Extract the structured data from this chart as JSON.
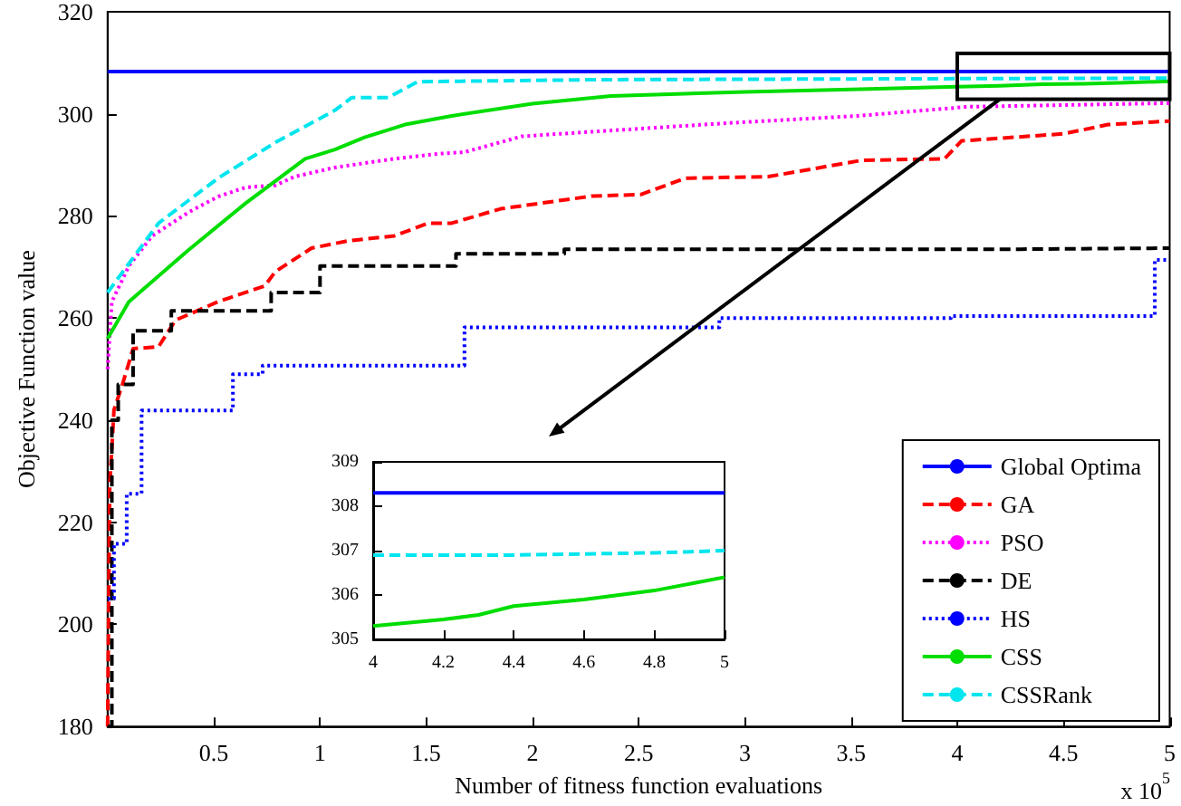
{
  "chart_data": [
    {
      "type": "line",
      "xlabel": "Number of fitness function evaluations",
      "ylabel": "Objective Function value",
      "annotations": [
        "x 10$^{5}$"
      ],
      "xlim": [
        0,
        5
      ],
      "xticks": [
        0.5,
        1,
        1.5,
        2,
        2.5,
        3,
        3.5,
        4,
        4.5,
        5
      ],
      "ylim": [
        180,
        320
      ],
      "yticks": [
        180,
        200,
        220,
        240,
        260,
        280,
        300,
        320
      ],
      "grid": false,
      "legend": "bottom right",
      "marker": "none",
      "series": [
        {
          "name": "Global Optima",
          "color": "#0000ff",
          "line_style": "solid",
          "x": [
            0,
            5
          ],
          "values": [
            308.3,
            308.3
          ]
        },
        {
          "name": "GA",
          "color": "#ff0000",
          "line_style": "dashed",
          "x": [
            0,
            0.01,
            0.03,
            0.07,
            0.12,
            0.24,
            0.32,
            0.52,
            0.74,
            0.79,
            0.96,
            1.13,
            1.35,
            1.51,
            1.62,
            1.85,
            2.28,
            2.51,
            2.72,
            3.11,
            3.55,
            3.94,
            4.02,
            4.5,
            4.71,
            5
          ],
          "values": [
            180,
            227,
            242,
            247,
            254,
            254.4,
            259.6,
            263.2,
            266.3,
            269.1,
            273.7,
            275.1,
            276.1,
            278.6,
            278.6,
            281.4,
            283.9,
            284.2,
            287.4,
            287.7,
            290.9,
            291.2,
            294.7,
            296.1,
            297.9,
            298.6
          ]
        },
        {
          "name": "PSO",
          "color": "#ff00ff",
          "line_style": "dotted",
          "x": [
            0,
            0.02,
            0.1,
            0.21,
            0.38,
            0.52,
            0.65,
            0.79,
            0.88,
            1.07,
            1.35,
            1.56,
            1.68,
            1.95,
            2.28,
            2.92,
            3.53,
            4.05,
            5
          ],
          "values": [
            250,
            263.2,
            270.2,
            276.1,
            280.7,
            283.8,
            285.6,
            286,
            287.7,
            289.5,
            291.2,
            292.2,
            292.5,
            295.6,
            296.5,
            298.2,
            299.6,
            301.4,
            302.1
          ]
        },
        {
          "name": "DE",
          "color": "#000000",
          "line_style": "dashed",
          "type": "step",
          "x": [
            0,
            0.02,
            0.05,
            0.12,
            0.3,
            0.77,
            1.0,
            1.64,
            2.15,
            4.3,
            5
          ],
          "values": [
            180,
            240,
            247,
            257.5,
            261.4,
            265,
            270.2,
            272.6,
            273.5,
            273.7,
            273.7
          ]
        },
        {
          "name": "HS",
          "color": "#0000ff",
          "line_style": "dotted",
          "type": "step",
          "x": [
            0,
            0.03,
            0.09,
            0.16,
            0.59,
            0.73,
            1.68,
            2.88,
            3.97,
            4.93,
            5
          ],
          "values": [
            205,
            215.8,
            225.6,
            241.9,
            249,
            250.7,
            258.2,
            260,
            260.4,
            271.4,
            271.4
          ]
        },
        {
          "name": "CSS",
          "color": "#00dd00",
          "line_style": "solid",
          "x": [
            0,
            0.1,
            0.38,
            0.65,
            0.93,
            1.07,
            1.21,
            1.4,
            1.62,
            2.0,
            2.37,
            3.0,
            3.5,
            4.0,
            4.2,
            4.4,
            4.6,
            4.8,
            5
          ],
          "values": [
            256,
            263.2,
            273.3,
            282.5,
            291.2,
            293,
            295.4,
            297.9,
            299.6,
            302,
            303.5,
            304.3,
            304.8,
            305.3,
            305.5,
            305.8,
            305.9,
            306.1,
            306.4
          ]
        },
        {
          "name": "CSSRank",
          "color": "#00e5ee",
          "line_style": "dashed",
          "x": [
            0,
            0.24,
            0.52,
            0.79,
            1.07,
            1.15,
            1.32,
            1.46,
            2.3,
            4.0,
            5
          ],
          "values": [
            265,
            278.6,
            287.4,
            294.4,
            300.7,
            303.2,
            303.2,
            306.3,
            306.7,
            306.9,
            307.0
          ]
        }
      ]
    },
    {
      "type": "line",
      "xlim": [
        4,
        5
      ],
      "xticks": [
        4,
        4.2,
        4.4,
        4.6,
        4.8,
        5
      ],
      "ylim": [
        305,
        309
      ],
      "yticks": [
        305,
        306,
        307,
        308,
        309
      ],
      "grid": false,
      "legend": false,
      "marker": "none",
      "series": [
        {
          "color": "#0000ff",
          "line_style": "solid",
          "x": [
            4,
            5
          ],
          "values": [
            308.3,
            308.3
          ]
        },
        {
          "color": "#00e5ee",
          "line_style": "dashed",
          "x": [
            4,
            4.4,
            4.8,
            5
          ],
          "values": [
            306.9,
            306.9,
            306.95,
            307.0
          ]
        },
        {
          "color": "#00dd00",
          "line_style": "solid",
          "x": [
            4,
            4.2,
            4.3,
            4.4,
            4.6,
            4.8,
            5
          ],
          "values": [
            305.3,
            305.45,
            305.55,
            305.75,
            305.9,
            306.1,
            306.4
          ]
        }
      ]
    }
  ]
}
